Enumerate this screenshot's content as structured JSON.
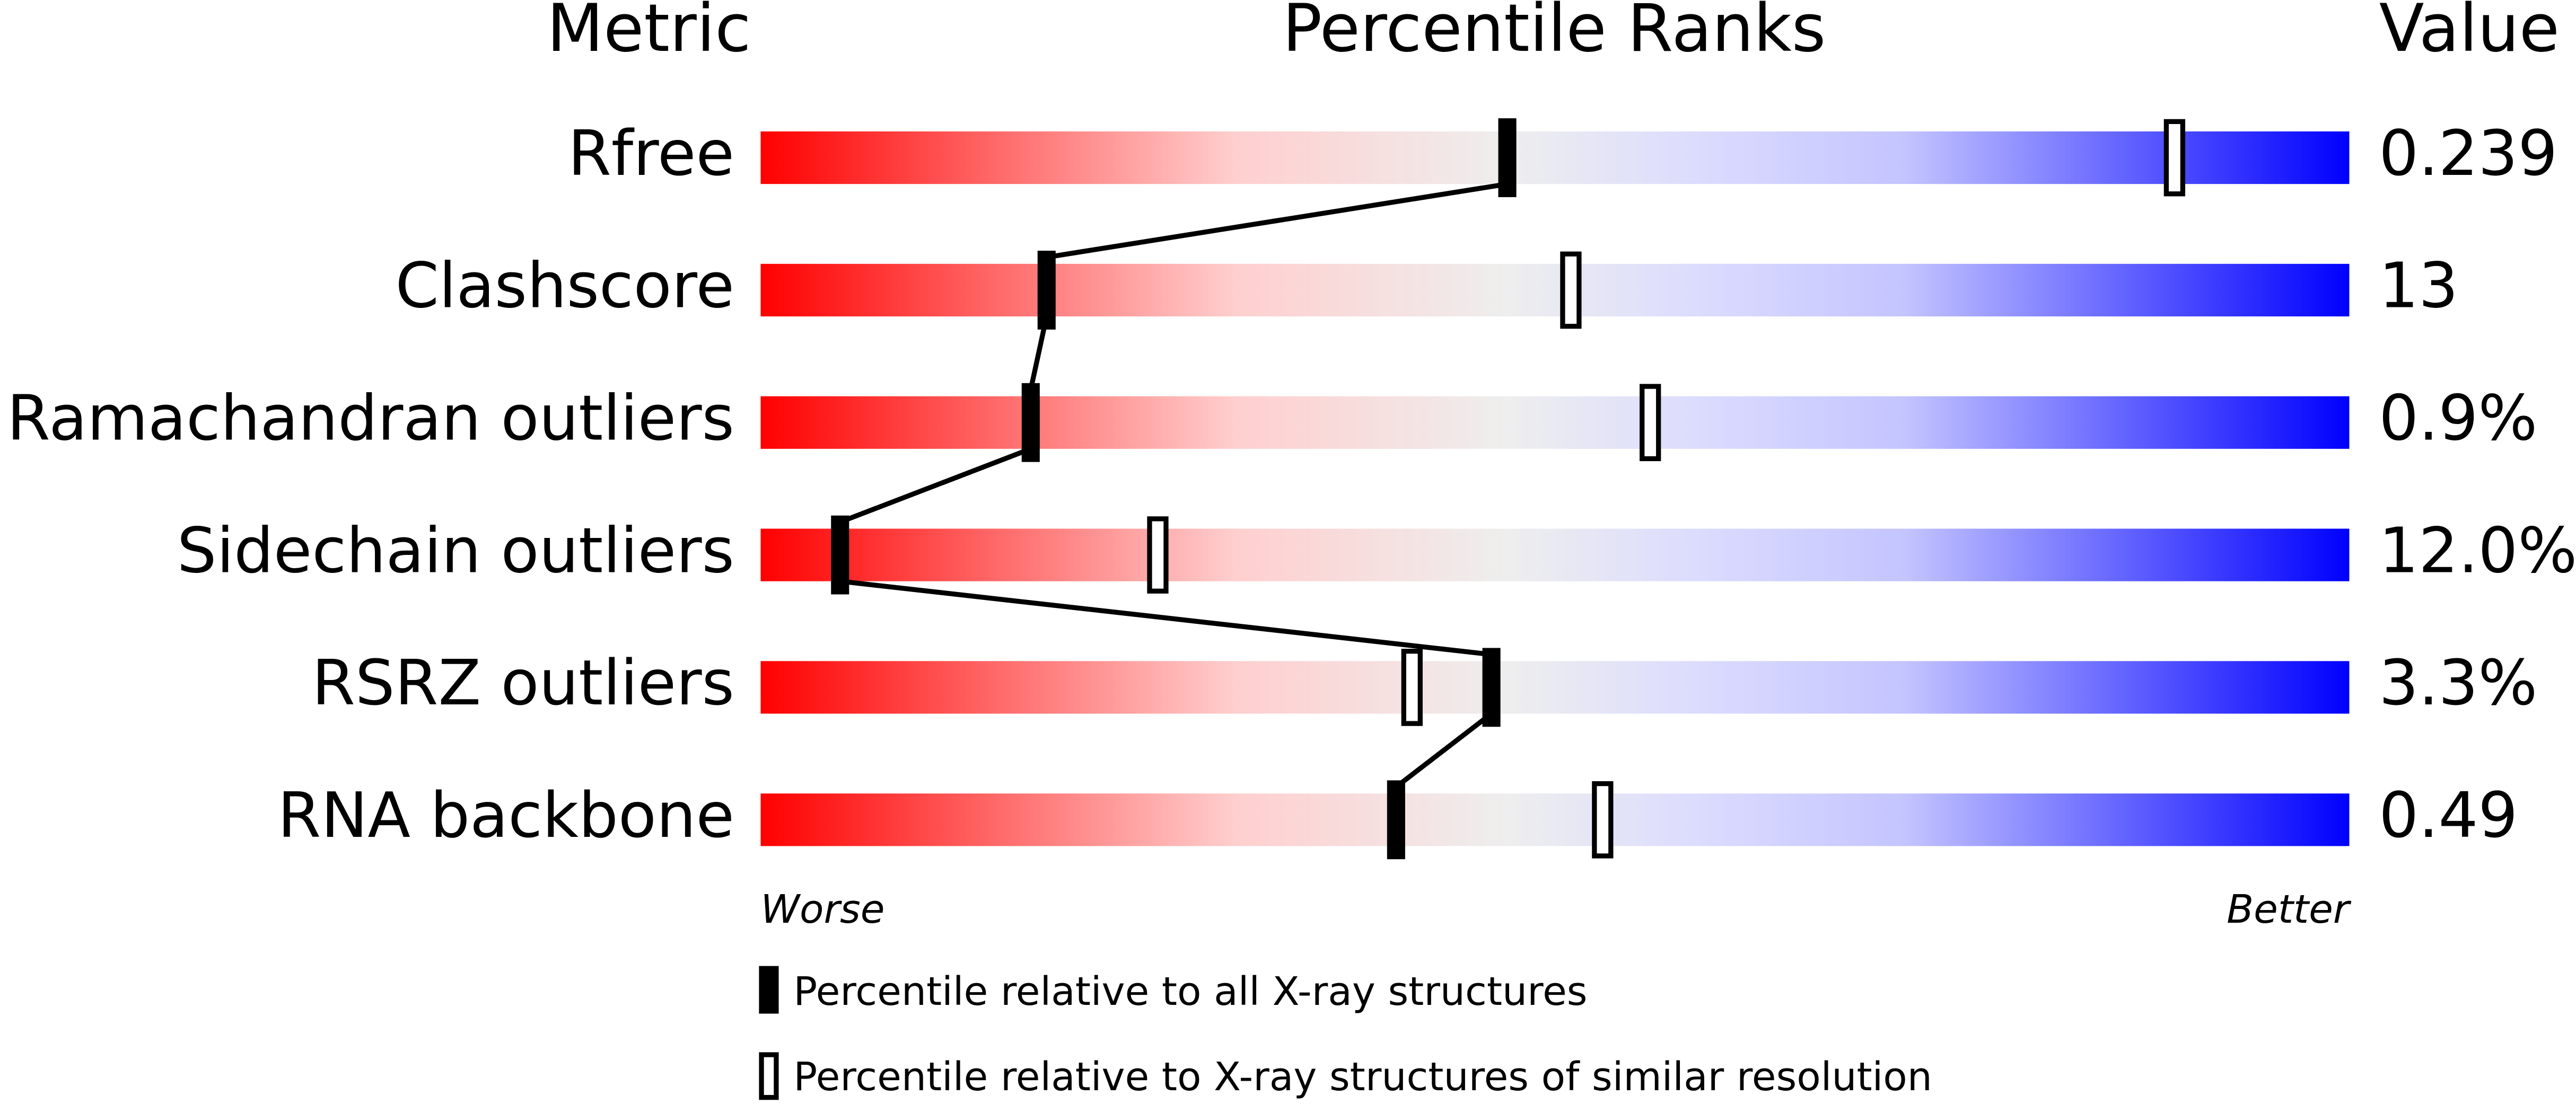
{
  "chart_data": {
    "type": "percentile",
    "metric_header": "Metric",
    "title": "Percentile Ranks",
    "value_header": "Value",
    "categories": [
      "Rfree",
      "Clashscore",
      "Ramachandran outliers",
      "Sidechain outliers",
      "RSRZ outliers",
      "RNA backbone"
    ],
    "metric_values": [
      "0.239",
      "13",
      "0.9%",
      "12.0%",
      "3.3%",
      "0.49"
    ],
    "xlim": [
      0,
      100
    ],
    "worse_label": "Worse",
    "better_label": "Better",
    "series": [
      {
        "name": "Percentile relative to all X-ray structures",
        "color": "#000000",
        "values": [
          47,
          18,
          17,
          5,
          46,
          40
        ]
      },
      {
        "name": "Percentile relative to X-ray structures of similar resolution",
        "color": "#ffffff",
        "values": [
          89,
          51,
          56,
          25,
          41,
          53
        ]
      }
    ]
  }
}
